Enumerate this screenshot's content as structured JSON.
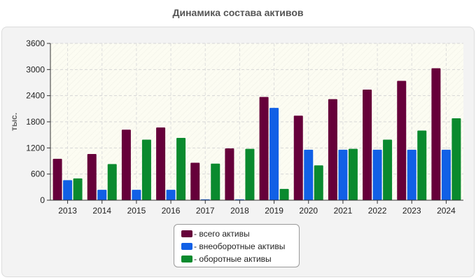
{
  "chart_data": {
    "type": "bar",
    "title": "Динамика состава активов",
    "xlabel": "",
    "ylabel": "тыс.",
    "ylim": [
      0,
      3600
    ],
    "yticks": [
      0,
      600,
      1200,
      1800,
      2400,
      3000,
      3600
    ],
    "categories": [
      "2013",
      "2014",
      "2015",
      "2016",
      "2017",
      "2018",
      "2019",
      "2020",
      "2021",
      "2022",
      "2023",
      "2024"
    ],
    "series": [
      {
        "name": "всего активы",
        "legend_label": "- всего активы",
        "color": "#66003a",
        "values": [
          950,
          1060,
          1620,
          1670,
          860,
          1190,
          2370,
          1940,
          2320,
          2540,
          2740,
          3030
        ]
      },
      {
        "name": "внеоборотные активы",
        "legend_label": "- внеоборотные активы",
        "color": "#1160e6",
        "values": [
          460,
          240,
          240,
          240,
          20,
          20,
          2120,
          1160,
          1160,
          1160,
          1160,
          1160
        ]
      },
      {
        "name": "оборотные активы",
        "legend_label": "- оборотные активы",
        "color": "#0a8a2e",
        "values": [
          500,
          830,
          1390,
          1430,
          840,
          1180,
          260,
          800,
          1180,
          1390,
          1600,
          1880
        ]
      }
    ],
    "grid": true,
    "legend_position": "bottom-center"
  }
}
